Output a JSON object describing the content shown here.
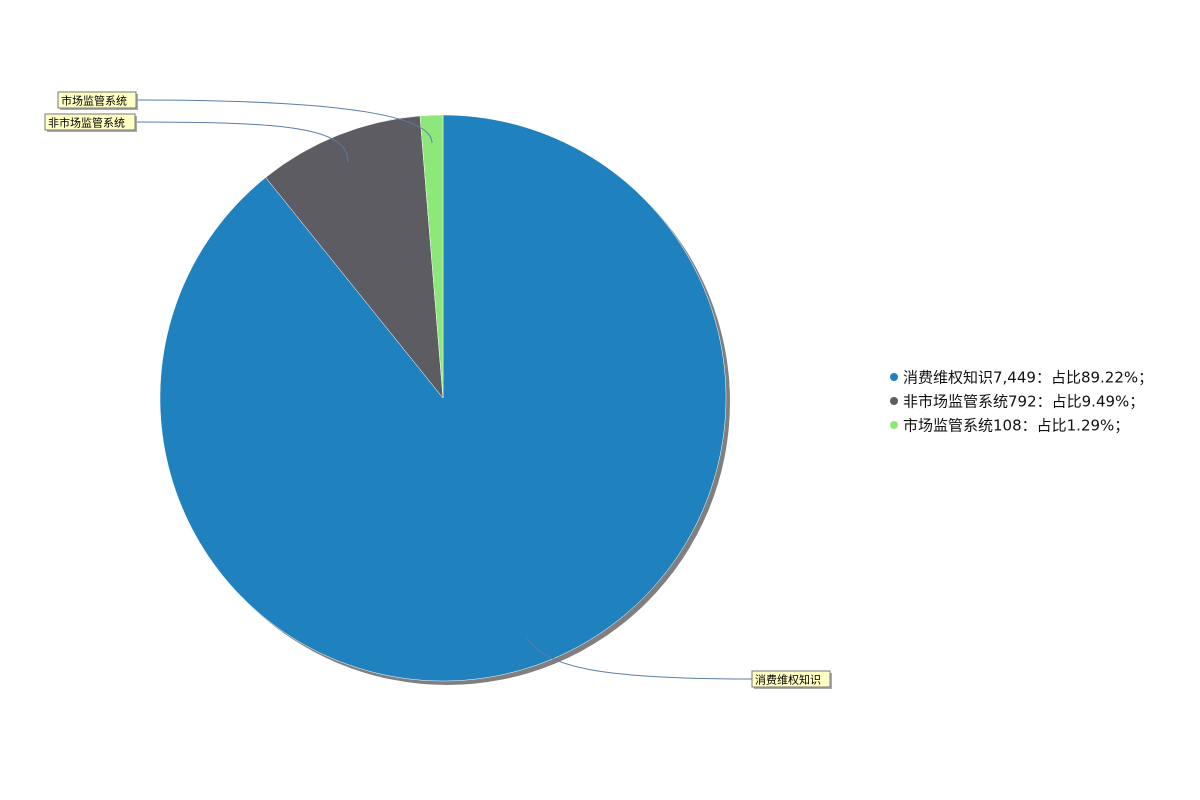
{
  "chart_data": {
    "type": "pie",
    "start_angle": "top",
    "direction": "clockwise",
    "slices": [
      {
        "label": "消费维权知识",
        "value": 7449,
        "percent": 89.22,
        "color": "#1f81bd",
        "legend": "消费维权知识7,449：占比89.22%；"
      },
      {
        "label": "非市场监管系统",
        "value": 792,
        "percent": 9.49,
        "color": "#5c5c62",
        "legend": "非市场监管系统792：占比9.49%；"
      },
      {
        "label": "市场监管系统",
        "value": 108,
        "percent": 1.29,
        "color": "#8de879",
        "legend": "市场监管系统108：占比1.29%；"
      }
    ],
    "legend_placement": "right",
    "label_box_color": "#ffffc4",
    "connector_color": "#5a7fa8"
  }
}
